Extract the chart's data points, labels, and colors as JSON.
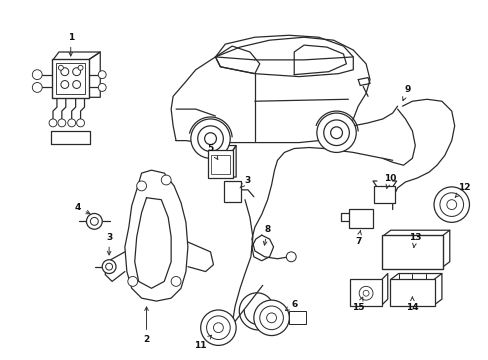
{
  "background_color": "#ffffff",
  "fig_width": 4.89,
  "fig_height": 3.6,
  "dpi": 100,
  "line_color": "#2a2a2a",
  "line_width": 0.9
}
